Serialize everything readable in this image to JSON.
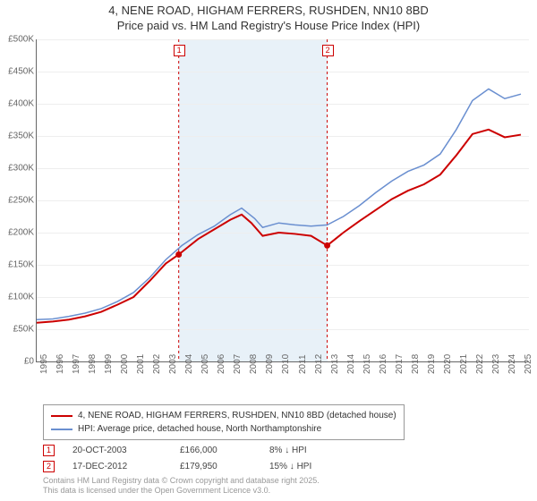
{
  "title_line1": "4, NENE ROAD, HIGHAM FERRERS, RUSHDEN, NN10 8BD",
  "title_line2": "Price paid vs. HM Land Registry's House Price Index (HPI)",
  "chart": {
    "type": "line",
    "background_color": "#ffffff",
    "grid_color": "#eeeeee",
    "shade_color": "#e4eef7",
    "shade_range_years": [
      2003.8,
      2013.0
    ],
    "xlim": [
      1995,
      2025.5
    ],
    "ylim": [
      0,
      500000
    ],
    "ytick_step": 50000,
    "yticks": [
      "£0",
      "£50K",
      "£100K",
      "£150K",
      "£200K",
      "£250K",
      "£300K",
      "£350K",
      "£400K",
      "£450K",
      "£500K"
    ],
    "xticks": [
      1995,
      1996,
      1997,
      1998,
      1999,
      2000,
      2001,
      2002,
      2003,
      2004,
      2005,
      2006,
      2007,
      2008,
      2009,
      2010,
      2011,
      2012,
      2013,
      2014,
      2015,
      2016,
      2017,
      2018,
      2019,
      2020,
      2021,
      2022,
      2023,
      2024,
      2025
    ],
    "series": [
      {
        "name": "price_paid",
        "label": "4, NENE ROAD, HIGHAM FERRERS, RUSHDEN, NN10 8BD (detached house)",
        "color": "#cc0000",
        "line_width": 2,
        "points": [
          [
            1995,
            60000
          ],
          [
            1996,
            62000
          ],
          [
            1997,
            65000
          ],
          [
            1998,
            70000
          ],
          [
            1999,
            77000
          ],
          [
            2000,
            88000
          ],
          [
            2001,
            100000
          ],
          [
            2002,
            125000
          ],
          [
            2003,
            152000
          ],
          [
            2003.8,
            166000
          ],
          [
            2004.5,
            180000
          ],
          [
            2005,
            190000
          ],
          [
            2006,
            205000
          ],
          [
            2007,
            220000
          ],
          [
            2007.7,
            228000
          ],
          [
            2008.3,
            215000
          ],
          [
            2009,
            195000
          ],
          [
            2010,
            200000
          ],
          [
            2011,
            198000
          ],
          [
            2012,
            195000
          ],
          [
            2013,
            179950
          ],
          [
            2014,
            200000
          ],
          [
            2015,
            218000
          ],
          [
            2016,
            235000
          ],
          [
            2017,
            252000
          ],
          [
            2018,
            265000
          ],
          [
            2019,
            275000
          ],
          [
            2020,
            290000
          ],
          [
            2021,
            320000
          ],
          [
            2022,
            353000
          ],
          [
            2023,
            360000
          ],
          [
            2024,
            348000
          ],
          [
            2025,
            352000
          ]
        ]
      },
      {
        "name": "hpi",
        "label": "HPI: Average price, detached house, North Northamptonshire",
        "color": "#6a8fd0",
        "line_width": 1.5,
        "points": [
          [
            1995,
            65000
          ],
          [
            1996,
            66000
          ],
          [
            1997,
            70000
          ],
          [
            1998,
            75000
          ],
          [
            1999,
            82000
          ],
          [
            2000,
            93000
          ],
          [
            2001,
            107000
          ],
          [
            2002,
            130000
          ],
          [
            2003,
            158000
          ],
          [
            2004,
            180000
          ],
          [
            2005,
            197000
          ],
          [
            2006,
            210000
          ],
          [
            2007,
            228000
          ],
          [
            2007.7,
            238000
          ],
          [
            2008.5,
            222000
          ],
          [
            2009,
            208000
          ],
          [
            2010,
            215000
          ],
          [
            2011,
            212000
          ],
          [
            2012,
            210000
          ],
          [
            2013,
            212000
          ],
          [
            2014,
            225000
          ],
          [
            2015,
            242000
          ],
          [
            2016,
            262000
          ],
          [
            2017,
            280000
          ],
          [
            2018,
            295000
          ],
          [
            2019,
            305000
          ],
          [
            2020,
            322000
          ],
          [
            2021,
            360000
          ],
          [
            2022,
            405000
          ],
          [
            2023,
            423000
          ],
          [
            2024,
            408000
          ],
          [
            2025,
            415000
          ]
        ]
      }
    ],
    "markers": [
      {
        "n": "1",
        "year": 2003.8,
        "price": 166000
      },
      {
        "n": "2",
        "year": 2013.0,
        "price": 179950
      }
    ]
  },
  "legend": {
    "items": [
      {
        "color": "#cc0000",
        "label": "4, NENE ROAD, HIGHAM FERRERS, RUSHDEN, NN10 8BD (detached house)"
      },
      {
        "color": "#6a8fd0",
        "label": "HPI: Average price, detached house, North Northamptonshire"
      }
    ]
  },
  "sales": [
    {
      "n": "1",
      "date": "20-OCT-2003",
      "price": "£166,000",
      "pct": "8% ↓ HPI"
    },
    {
      "n": "2",
      "date": "17-DEC-2012",
      "price": "£179,950",
      "pct": "15% ↓ HPI"
    }
  ],
  "footer_line1": "Contains HM Land Registry data © Crown copyright and database right 2025.",
  "footer_line2": "This data is licensed under the Open Government Licence v3.0."
}
